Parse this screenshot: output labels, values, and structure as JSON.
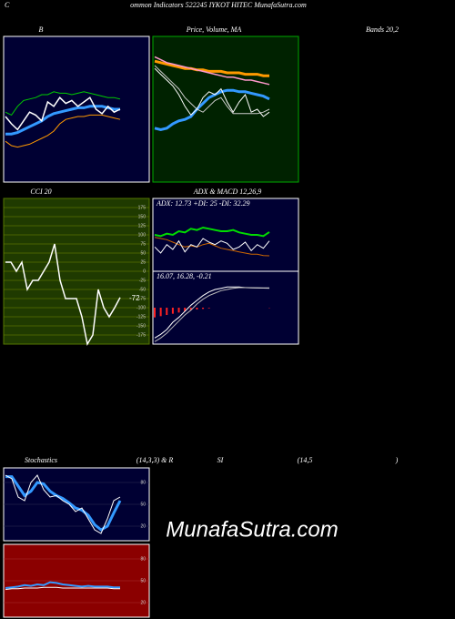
{
  "header": {
    "initial": "C",
    "text": "ommon Indicators 522245 IYKOT HITEC MunafaSutra.com",
    "watermark": "MunafaSutra.com"
  },
  "chart_data": [
    {
      "type": "line",
      "title": "B",
      "subtitle": "Bands 20,2",
      "ylim": [
        0,
        100
      ],
      "series": [
        {
          "color": "#00cc00",
          "width": 1,
          "values": [
            48,
            46,
            52,
            56,
            57,
            58,
            60,
            60,
            62,
            61,
            61,
            60,
            61,
            62,
            61,
            60,
            59,
            58,
            58,
            57
          ]
        },
        {
          "color": "#ff9900",
          "width": 1,
          "values": [
            28,
            25,
            24,
            25,
            26,
            28,
            30,
            32,
            35,
            40,
            43,
            44,
            45,
            45,
            46,
            46,
            46,
            45,
            44,
            43
          ]
        },
        {
          "color": "#3399ff",
          "width": 3,
          "values": [
            33,
            33,
            34,
            36,
            38,
            40,
            42,
            45,
            47,
            48,
            49,
            50,
            51,
            51,
            52,
            52,
            52,
            51,
            50,
            50
          ]
        },
        {
          "color": "#ffffff",
          "width": 1.5,
          "values": [
            45,
            40,
            36,
            42,
            48,
            46,
            42,
            55,
            52,
            58,
            54,
            56,
            52,
            55,
            58,
            50,
            47,
            52,
            48,
            50
          ]
        }
      ]
    },
    {
      "type": "line",
      "title": "Price, Volume, MA",
      "ylim": [
        0,
        100
      ],
      "series": [
        {
          "color": "#ff9900",
          "width": 3,
          "values": [
            83,
            82,
            81,
            80,
            79,
            78,
            78,
            77,
            77,
            76,
            76,
            76,
            75,
            75,
            75,
            74,
            74,
            74,
            73,
            73
          ]
        },
        {
          "color": "#ff99cc",
          "width": 1.5,
          "values": [
            86,
            84,
            82,
            81,
            80,
            79,
            78,
            77,
            76,
            75,
            74,
            73,
            72,
            72,
            71,
            70,
            70,
            69,
            68,
            67
          ]
        },
        {
          "color": "#3399ff",
          "width": 3,
          "values": [
            37,
            36,
            37,
            40,
            42,
            43,
            45,
            50,
            54,
            58,
            60,
            62,
            63,
            63,
            62,
            62,
            61,
            60,
            59,
            57
          ]
        },
        {
          "color": "#cccccc",
          "width": 1,
          "values": [
            80,
            76,
            72,
            68,
            64,
            58,
            54,
            50,
            48,
            52,
            56,
            58,
            52,
            47,
            47,
            47,
            47,
            47,
            48,
            50
          ]
        },
        {
          "color": "#ffffff",
          "width": 1,
          "values": [
            78,
            74,
            70,
            66,
            60,
            52,
            46,
            50,
            58,
            62,
            60,
            64,
            55,
            48,
            55,
            60,
            48,
            50,
            45,
            48
          ]
        }
      ]
    },
    {
      "type": "line",
      "title": "CCI 20",
      "ylim": [
        -200,
        200
      ],
      "grid": true,
      "yticks": [
        175,
        150,
        125,
        100,
        75,
        50,
        25,
        0,
        -25,
        -50,
        -75,
        -100,
        -125,
        -150,
        -175
      ],
      "series": [
        {
          "color": "#ffffff",
          "width": 1.5,
          "label_last": true,
          "values": [
            25,
            25,
            0,
            25,
            -50,
            -25,
            -25,
            0,
            25,
            75,
            -25,
            -75,
            -75,
            -75,
            -125,
            -200,
            -175,
            -50,
            -100,
            -125,
            -100,
            -72
          ]
        }
      ]
    },
    {
      "type": "line",
      "title": "ADX  & MACD 12,26,9",
      "annotation": "ADX: 12.73 +DI: 25 -DI: 32.29",
      "ylim": [
        0,
        60
      ],
      "series": [
        {
          "color": "#00dd00",
          "width": 2,
          "values": [
            30,
            29,
            31,
            30,
            33,
            32,
            35,
            34,
            36,
            35,
            34,
            33,
            33,
            34,
            32,
            31,
            30,
            30,
            29,
            32.29
          ]
        },
        {
          "color": "#cc6600",
          "width": 1,
          "values": [
            28,
            27,
            26,
            24,
            22,
            20,
            21,
            20,
            22,
            23,
            21,
            19,
            18,
            17,
            16,
            15,
            14,
            14,
            13,
            12.73
          ]
        },
        {
          "color": "#ffffff",
          "width": 1,
          "values": [
            20,
            15,
            22,
            18,
            25,
            16,
            22,
            20,
            27,
            24,
            22,
            25,
            23,
            18,
            20,
            24,
            17,
            22,
            19,
            25
          ]
        }
      ]
    },
    {
      "type": "line",
      "annotation": "16.07, 16.28, -0.21",
      "ylim": [
        -30,
        30
      ],
      "series": [
        {
          "color": "#ff2222",
          "style": "bar",
          "values": [
            -8,
            -7,
            -6,
            -5,
            -4,
            -3,
            -2,
            -1.5,
            -1,
            -0.5,
            0,
            0,
            0,
            0,
            0,
            0,
            0,
            0,
            0,
            -0.21
          ]
        },
        {
          "color": "#ffffff",
          "width": 1,
          "values": [
            -25,
            -22,
            -18,
            -12,
            -8,
            -3,
            2,
            6,
            10,
            13,
            15,
            16,
            17,
            17,
            17,
            16.5,
            16.3,
            16.2,
            16.1,
            16.07
          ]
        },
        {
          "color": "#bbbbbb",
          "width": 1,
          "values": [
            -28,
            -25,
            -21,
            -16,
            -11,
            -6,
            -2,
            3,
            7,
            10,
            12,
            14,
            15,
            16,
            16.5,
            16.6,
            16.5,
            16.4,
            16.3,
            16.28
          ]
        }
      ]
    },
    {
      "type": "line",
      "title_parts": [
        "Stochastics",
        "(14,3,3) & R",
        "SI",
        "(14,5",
        ")"
      ],
      "ylim": [
        0,
        100
      ],
      "yticks": [
        80,
        50,
        20
      ],
      "series": [
        {
          "color": "#3399ff",
          "width": 3,
          "values": [
            88,
            88,
            75,
            62,
            68,
            80,
            78,
            68,
            62,
            58,
            52,
            45,
            42,
            35,
            22,
            15,
            20,
            38,
            55
          ]
        },
        {
          "color": "#ffffff",
          "width": 1,
          "values": [
            90,
            85,
            60,
            55,
            80,
            90,
            70,
            60,
            62,
            55,
            50,
            40,
            45,
            30,
            15,
            10,
            30,
            55,
            60
          ]
        }
      ]
    },
    {
      "type": "line",
      "ylim": [
        0,
        100
      ],
      "yticks": [
        80,
        50,
        20
      ],
      "series": [
        {
          "color": "#3399ff",
          "width": 2,
          "values": [
            40,
            41,
            42,
            44,
            43,
            45,
            44,
            48,
            47,
            45,
            44,
            43,
            42,
            43,
            42,
            42,
            42,
            41,
            41
          ]
        },
        {
          "color": "#ffffff",
          "width": 1,
          "values": [
            38,
            39,
            39,
            40,
            40,
            40,
            41,
            41,
            41,
            40,
            40,
            40,
            40,
            40,
            40,
            40,
            40,
            39,
            39
          ]
        }
      ]
    }
  ]
}
